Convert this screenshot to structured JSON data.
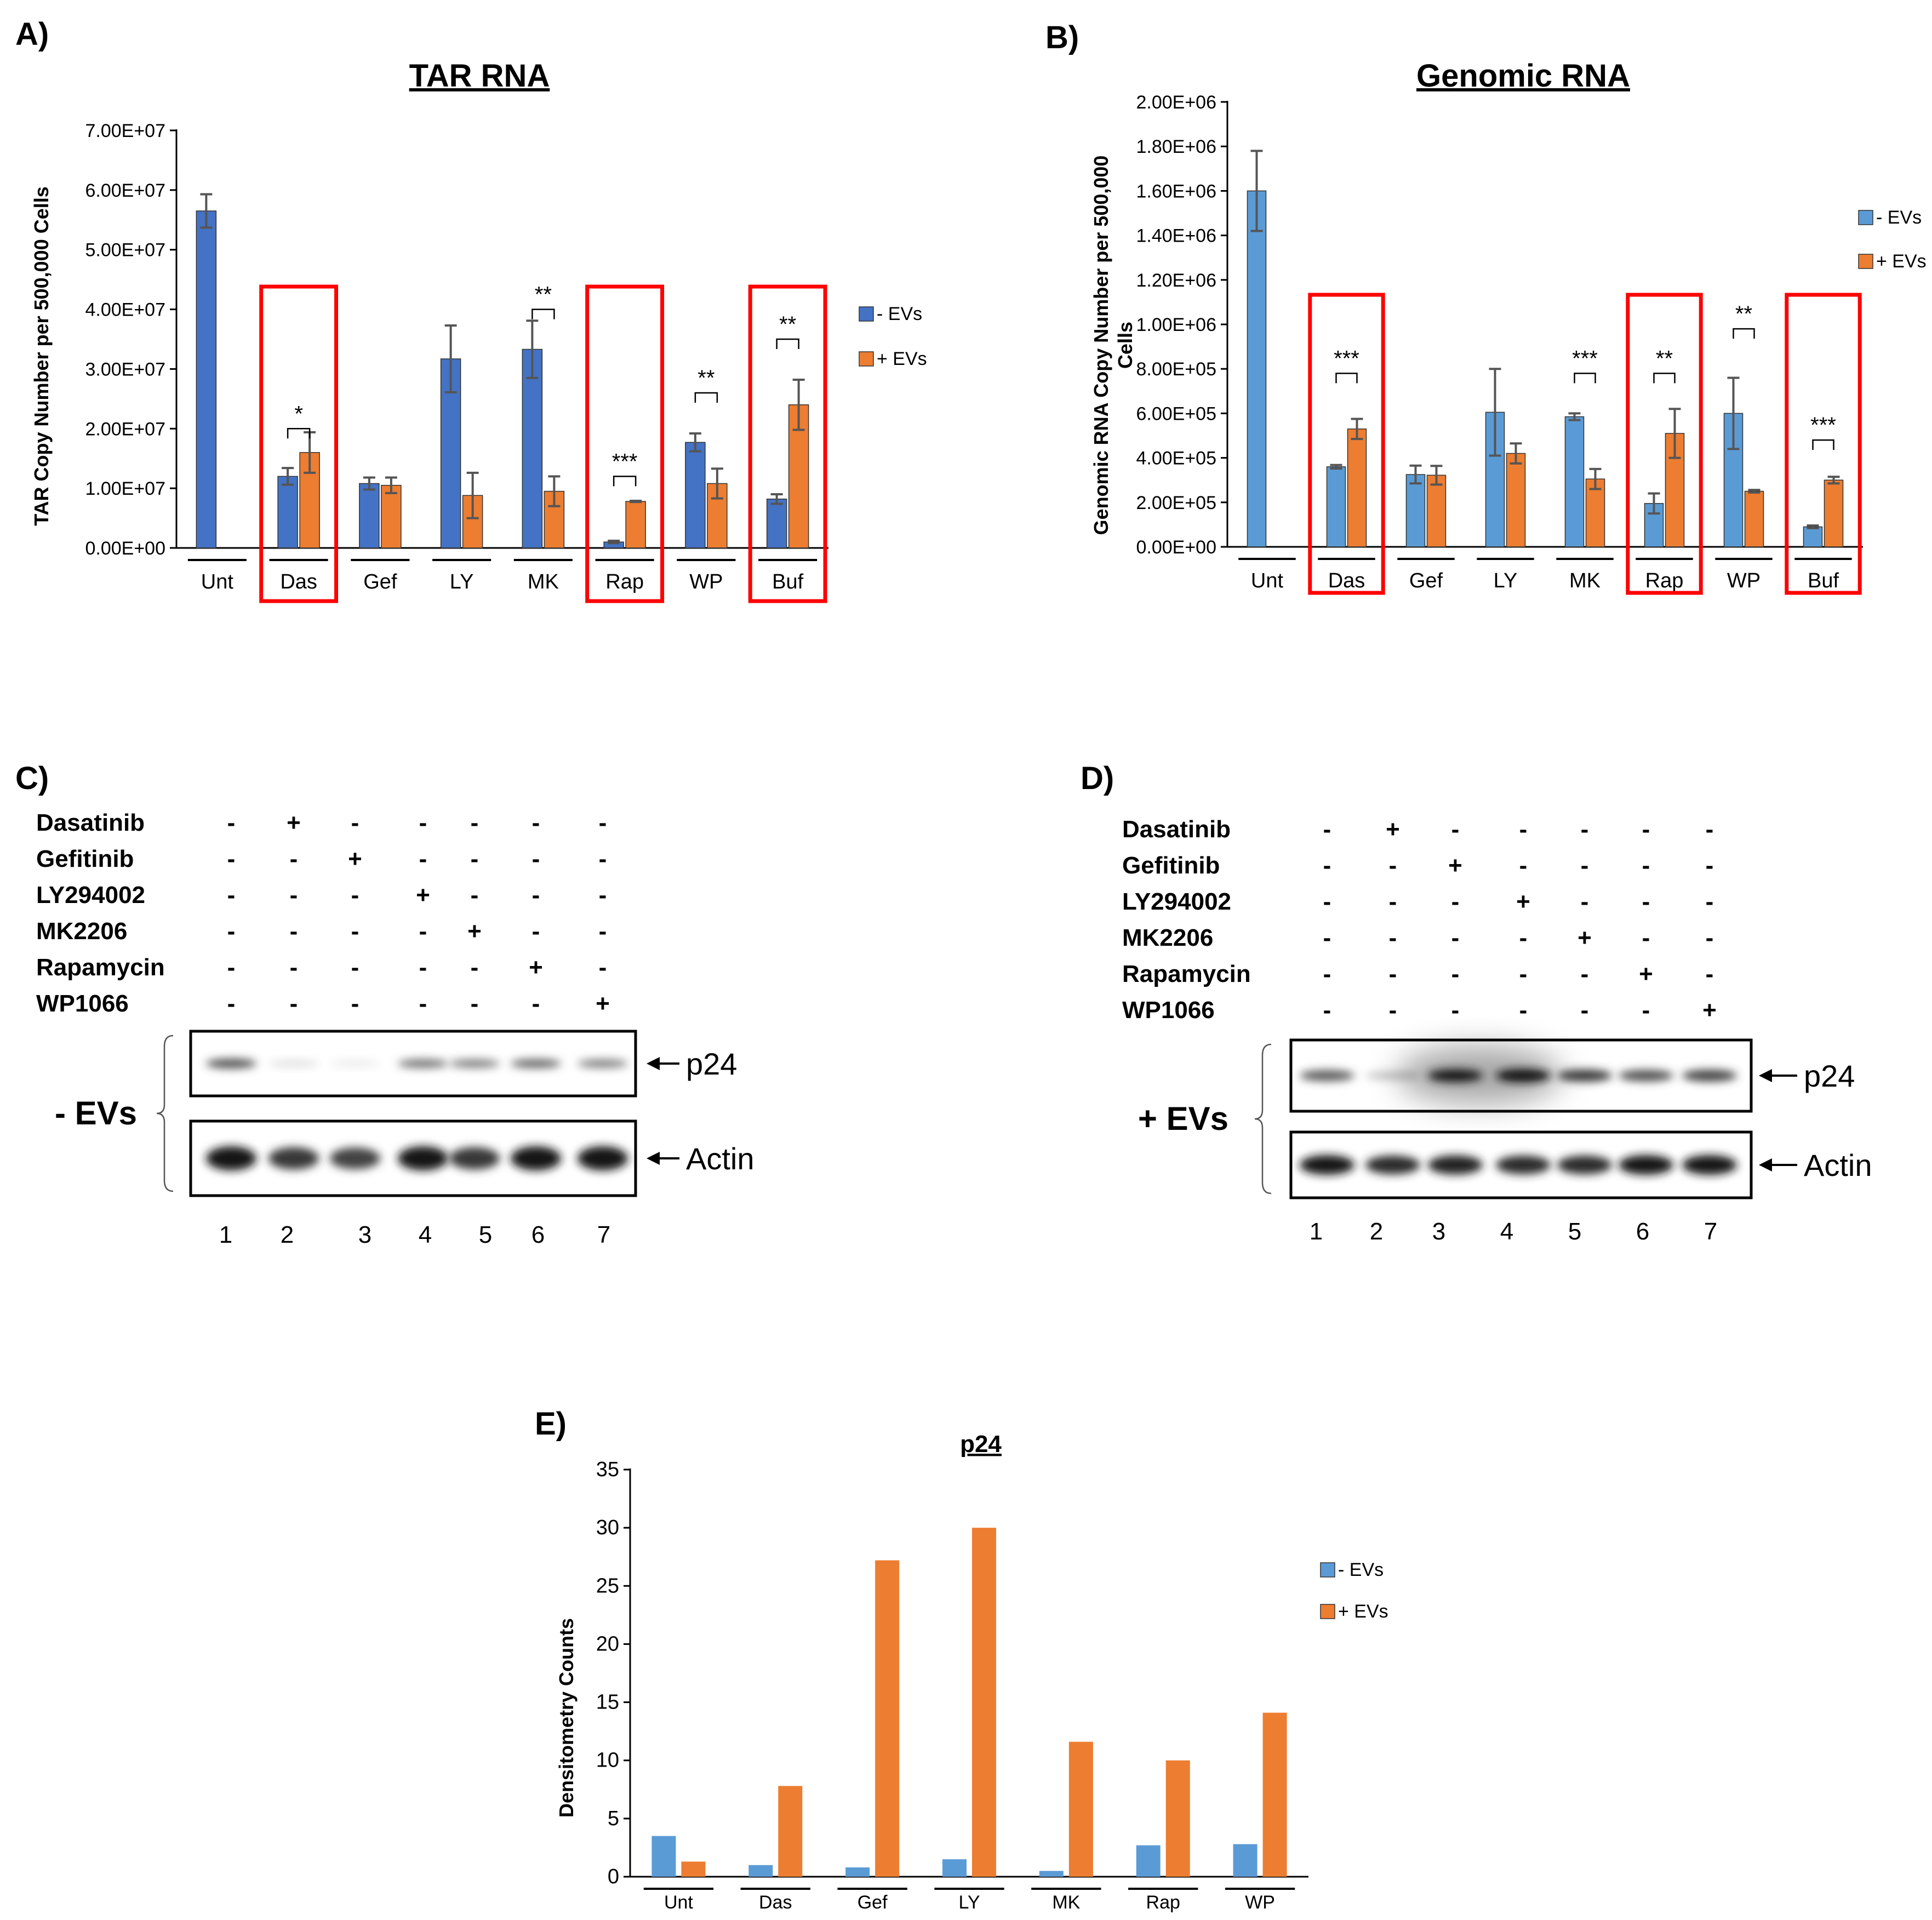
{
  "panels": {
    "a": "A)",
    "b": "B)",
    "c": "C)",
    "d": "D)",
    "e": "E)"
  },
  "colors": {
    "dark_blue": "#4472C4",
    "light_blue": "#5B9BD5",
    "orange": "#ED7D31",
    "highlight": "#FF0000",
    "error": "#555555"
  },
  "chart_data": [
    {
      "id": "A",
      "type": "bar",
      "title": "TAR RNA",
      "ylabel": "TAR Copy Number per 500,000 Cells",
      "ylim": [
        0,
        70000000
      ],
      "yticks": [
        0,
        10000000,
        20000000,
        30000000,
        40000000,
        50000000,
        60000000,
        70000000
      ],
      "ytick_labels": [
        "0.00E+00",
        "1.00E+07",
        "2.00E+07",
        "3.00E+07",
        "4.00E+07",
        "5.00E+07",
        "6.00E+07",
        "7.00E+07"
      ],
      "categories": [
        "Unt",
        "Das",
        "Gef",
        "LY",
        "MK",
        "Rap",
        "WP",
        "Buf"
      ],
      "series": [
        {
          "name": "- EVs",
          "color": "#4472C4",
          "values": [
            56500000,
            12000000,
            10800000,
            31700000,
            33300000,
            1000000,
            17700000,
            8200000
          ],
          "errors": [
            2800000,
            1400000,
            1000000,
            5600000,
            4800000,
            200000,
            1500000,
            800000
          ]
        },
        {
          "name": "+ EVs",
          "color": "#ED7D31",
          "values": [
            null,
            16000000,
            10500000,
            8800000,
            9500000,
            7800000,
            10800000,
            24000000
          ],
          "errors": [
            null,
            3400000,
            1300000,
            3800000,
            2500000,
            100000,
            2500000,
            4200000
          ]
        }
      ],
      "significance": [
        {
          "category": "Das",
          "label": "*",
          "level": 20000000
        },
        {
          "category": "MK",
          "label": "**",
          "level": 40000000
        },
        {
          "category": "Rap",
          "label": "***",
          "level": 12000000
        },
        {
          "category": "WP",
          "label": "**",
          "level": 26000000
        },
        {
          "category": "Buf",
          "label": "**",
          "level": 35000000
        }
      ],
      "highlighted": [
        "Das",
        "Rap",
        "Buf"
      ]
    },
    {
      "id": "B",
      "type": "bar",
      "title": "Genomic RNA",
      "ylabel_lines": [
        "Genomic RNA Copy Number per 500,000",
        "Cells"
      ],
      "ylim": [
        0,
        2000000
      ],
      "yticks": [
        0,
        200000,
        400000,
        600000,
        800000,
        1000000,
        1200000,
        1400000,
        1600000,
        1800000,
        2000000
      ],
      "ytick_labels": [
        "0.00E+00",
        "2.00E+05",
        "4.00E+05",
        "6.00E+05",
        "8.00E+05",
        "1.00E+06",
        "1.20E+06",
        "1.40E+06",
        "1.60E+06",
        "1.80E+06",
        "2.00E+06"
      ],
      "categories": [
        "Unt",
        "Das",
        "Gef",
        "LY",
        "MK",
        "Rap",
        "WP",
        "Buf"
      ],
      "series": [
        {
          "name": "- EVs",
          "color": "#5B9BD5",
          "values": [
            1600000,
            360000,
            325000,
            605000,
            585000,
            195000,
            600000,
            90000
          ],
          "errors": [
            180000,
            8000,
            40000,
            195000,
            15000,
            45000,
            160000,
            6000
          ]
        },
        {
          "name": "+ EVs",
          "color": "#ED7D31",
          "values": [
            null,
            530000,
            322000,
            420000,
            305000,
            510000,
            250000,
            300000
          ],
          "errors": [
            null,
            45000,
            42000,
            45000,
            45000,
            110000,
            6000,
            15000
          ]
        }
      ],
      "significance": [
        {
          "category": "Das",
          "label": "***",
          "level": 780000
        },
        {
          "category": "MK",
          "label": "***",
          "level": 780000
        },
        {
          "category": "Rap",
          "label": "**",
          "level": 780000
        },
        {
          "category": "WP",
          "label": "**",
          "level": 980000
        },
        {
          "category": "Buf",
          "label": "***",
          "level": 480000
        }
      ],
      "highlighted": [
        "Das",
        "Rap",
        "Buf"
      ]
    },
    {
      "id": "E",
      "type": "bar",
      "title": "p24",
      "ylabel": "Densitometry Counts",
      "ylim": [
        0,
        35
      ],
      "yticks": [
        0,
        5,
        10,
        15,
        20,
        25,
        30,
        35
      ],
      "ytick_labels": [
        "0",
        "5",
        "10",
        "15",
        "20",
        "25",
        "30",
        "35"
      ],
      "categories": [
        "Unt",
        "Das",
        "Gef",
        "LY",
        "MK",
        "Rap",
        "WP"
      ],
      "series": [
        {
          "name": "- EVs",
          "color": "#5B9BD5",
          "values": [
            3.5,
            1.0,
            0.8,
            1.5,
            0.5,
            2.7,
            2.8
          ]
        },
        {
          "name": "+ EVs",
          "color": "#ED7D31",
          "values": [
            1.3,
            7.8,
            27.2,
            30.0,
            11.6,
            10.0,
            14.1
          ]
        }
      ]
    }
  ],
  "blots": {
    "c": {
      "drugs": [
        "Dasatinib",
        "Gefitinib",
        "LY294002",
        "MK2206",
        "Rapamycin",
        "WP1066"
      ],
      "signs": [
        [
          "-",
          "+",
          "-",
          "-",
          "-",
          "-",
          "-"
        ],
        [
          "-",
          "-",
          "+",
          "-",
          "-",
          "-",
          "-"
        ],
        [
          "-",
          "-",
          "-",
          "+",
          "-",
          "-",
          "-"
        ],
        [
          "-",
          "-",
          "-",
          "-",
          "+",
          "-",
          "-"
        ],
        [
          "-",
          "-",
          "-",
          "-",
          "-",
          "+",
          "-"
        ],
        [
          "-",
          "-",
          "-",
          "-",
          "-",
          "-",
          "+"
        ]
      ],
      "p24_intensity": [
        0.75,
        0.15,
        0.1,
        0.6,
        0.55,
        0.65,
        0.55
      ],
      "actin_intensity": [
        1.0,
        0.85,
        0.8,
        1.0,
        0.85,
        1.0,
        1.0
      ],
      "p24_label": "p24",
      "actin_label": "Actin",
      "evs_label": "- EVs",
      "lanes": [
        "1",
        "2",
        "3",
        "4",
        "5",
        "6",
        "7"
      ]
    },
    "d": {
      "drugs": [
        "Dasatinib",
        "Gefitinib",
        "LY294002",
        "MK2206",
        "Rapamycin",
        "WP1066"
      ],
      "signs": [
        [
          "-",
          "+",
          "-",
          "-",
          "-",
          "-",
          "-"
        ],
        [
          "-",
          "-",
          "+",
          "-",
          "-",
          "-",
          "-"
        ],
        [
          "-",
          "-",
          "-",
          "+",
          "-",
          "-",
          "-"
        ],
        [
          "-",
          "-",
          "-",
          "-",
          "+",
          "-",
          "-"
        ],
        [
          "-",
          "-",
          "-",
          "-",
          "-",
          "+",
          "-"
        ],
        [
          "-",
          "-",
          "-",
          "-",
          "-",
          "-",
          "+"
        ]
      ],
      "p24_intensity": [
        0.7,
        0.25,
        0.95,
        1.0,
        0.85,
        0.75,
        0.8
      ],
      "actin_intensity": [
        1.0,
        0.9,
        0.95,
        0.9,
        0.9,
        1.0,
        1.0
      ],
      "p24_label": "p24",
      "actin_label": "Actin",
      "evs_label": "+ EVs",
      "lanes": [
        "1",
        "2",
        "3",
        "4",
        "5",
        "6",
        "7"
      ]
    }
  }
}
